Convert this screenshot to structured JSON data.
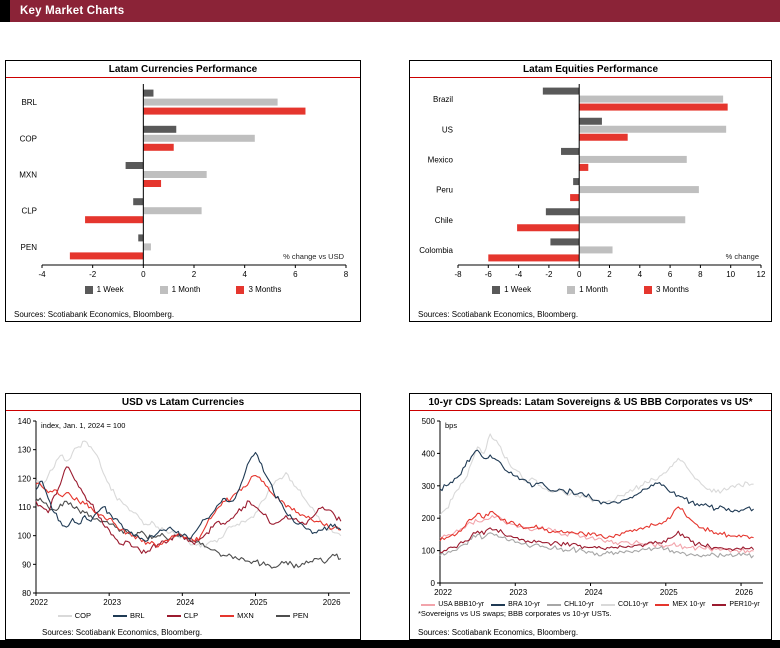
{
  "header": {
    "title": "Key Market Charts"
  },
  "colors": {
    "header_bg": "#8b2337",
    "accent_red": "#cc0000",
    "week1_gray": "#595959",
    "month1_gray": "#bfbfbf",
    "months3_red": "#e5362e",
    "navy": "#1f3a54",
    "dark_red": "#9b1b2f",
    "light_gray": "#d9d9d9",
    "mid_gray": "#a6a6a6",
    "pink": "#f2a4ab"
  },
  "chart_data": [
    {
      "id": "latam-currencies-performance",
      "type": "bar",
      "orientation": "horizontal",
      "title": "Latam Currencies Performance",
      "unit_label": "% change  vs USD",
      "sources": "Sources:  Scotiabank  Economics,  Bloomberg.",
      "xlim": [
        -4,
        8
      ],
      "xticks": [
        -4,
        -2,
        0,
        2,
        4,
        6,
        8
      ],
      "categories": [
        "BRL",
        "COP",
        "MXN",
        "CLP",
        "PEN"
      ],
      "series": [
        {
          "name": "1 Week",
          "color": "#595959",
          "values": [
            0.4,
            1.3,
            -0.7,
            -0.4,
            -0.2
          ]
        },
        {
          "name": "1 Month",
          "color": "#bfbfbf",
          "values": [
            5.3,
            4.4,
            2.5,
            2.3,
            0.3
          ]
        },
        {
          "name": "3 Months",
          "color": "#e5362e",
          "values": [
            6.4,
            1.2,
            0.7,
            -2.3,
            -2.9
          ]
        }
      ]
    },
    {
      "id": "latam-equities-performance",
      "type": "bar",
      "orientation": "horizontal",
      "title": "Latam Equities Performance",
      "unit_label": "% change",
      "sources": "Sources:  Scotiabank  Economics,  Bloomberg.",
      "xlim": [
        -8,
        12
      ],
      "xticks": [
        -8,
        -6,
        -4,
        -2,
        0,
        2,
        4,
        6,
        8,
        10,
        12
      ],
      "categories": [
        "Brazil",
        "US",
        "Mexico",
        "Peru",
        "Chile",
        "Colombia"
      ],
      "series": [
        {
          "name": "1 Week",
          "color": "#595959",
          "values": [
            -2.4,
            1.5,
            -1.2,
            -0.4,
            -2.2,
            -1.9
          ]
        },
        {
          "name": "1 Month",
          "color": "#bfbfbf",
          "values": [
            9.5,
            9.7,
            7.1,
            7.9,
            7.0,
            2.2
          ]
        },
        {
          "name": "3 Months",
          "color": "#e5362e",
          "values": [
            9.8,
            3.2,
            0.6,
            -0.6,
            -4.1,
            -6.0
          ]
        }
      ]
    },
    {
      "id": "usd-vs-latam-currencies",
      "type": "line",
      "title": "USD vs Latam Currencies",
      "axis_note": "index,  Jan. 1, 2024 = 100",
      "sources": "Sources:  Scotiabank  Economics,  Bloomberg.",
      "ylim": [
        80,
        140
      ],
      "yticks": [
        80,
        90,
        100,
        110,
        120,
        130,
        140
      ],
      "x_start_year": 2022,
      "points_per_year": 12,
      "xtick_years": [
        2022,
        2023,
        2024,
        2025,
        2026
      ],
      "series": [
        {
          "name": "COP",
          "color": "#d9d9d9",
          "z": 0,
          "values": [
            119,
            117,
            121,
            124,
            128,
            126,
            129,
            131,
            133,
            131,
            128,
            122,
            118,
            114,
            112,
            110,
            108,
            106,
            104,
            105,
            103,
            102,
            101,
            100,
            100,
            98,
            97,
            96,
            97,
            98,
            99,
            101,
            103,
            104,
            105,
            106,
            108,
            112,
            115,
            118,
            120,
            122,
            119,
            116,
            113,
            110,
            107,
            104,
            102,
            101,
            100
          ]
        },
        {
          "name": "BRL",
          "color": "#1f3a54",
          "z": 4,
          "values": [
            116,
            119,
            113,
            108,
            105,
            103,
            106,
            104,
            107,
            105,
            108,
            110,
            108,
            106,
            104,
            102,
            100,
            99,
            98,
            100,
            101,
            102,
            103,
            101,
            100,
            99,
            101,
            104,
            106,
            108,
            111,
            113,
            112,
            115,
            120,
            126,
            129,
            125,
            120,
            115,
            112,
            108,
            106,
            104,
            103,
            102,
            101,
            102,
            103,
            104,
            102
          ]
        },
        {
          "name": "CLP",
          "color": "#9b1b2f",
          "z": 2,
          "values": [
            112,
            110,
            108,
            114,
            118,
            124,
            121,
            117,
            114,
            111,
            108,
            104,
            102,
            99,
            97,
            98,
            96,
            95,
            94,
            96,
            97,
            98,
            99,
            100,
            100,
            98,
            97,
            99,
            101,
            103,
            105,
            104,
            106,
            108,
            110,
            112,
            110,
            108,
            106,
            104,
            105,
            107,
            106,
            105,
            104,
            106,
            108,
            110,
            109,
            107,
            105
          ]
        },
        {
          "name": "MXN",
          "color": "#e5362e",
          "z": 3,
          "values": [
            118,
            117,
            115,
            116,
            114,
            115,
            113,
            112,
            111,
            110,
            108,
            107,
            106,
            104,
            102,
            101,
            100,
            99,
            97,
            98,
            96,
            98,
            99,
            100,
            100,
            99,
            98,
            100,
            104,
            107,
            110,
            112,
            113,
            115,
            117,
            119,
            121,
            119,
            117,
            114,
            112,
            110,
            109,
            108,
            107,
            106,
            105,
            104,
            103,
            103,
            102
          ]
        },
        {
          "name": "PEN",
          "color": "#4d4d4d",
          "z": 1,
          "values": [
            113,
            112,
            110,
            109,
            111,
            112,
            110,
            109,
            108,
            107,
            106,
            105,
            104,
            103,
            102,
            101,
            100,
            101,
            100,
            99,
            100,
            100,
            99,
            100,
            100,
            99,
            98,
            97,
            96,
            95,
            94,
            93,
            93,
            92,
            92,
            91,
            91,
            90,
            90,
            89,
            90,
            91,
            90,
            89,
            90,
            91,
            92,
            91,
            92,
            93,
            92
          ]
        }
      ]
    },
    {
      "id": "cds-spreads-latam-sovereigns",
      "type": "line",
      "title": "10-yr CDS Spreads: Latam Sovereigns & US BBB Corporates vs US*",
      "axis_note": "bps",
      "footnote": "*Sovereigns vs US swaps;  BBB corporates  vs 10-yr USTs.",
      "sources": "Sources:  Scotiabank  Economics,  Bloomberg.",
      "ylim": [
        0,
        500
      ],
      "yticks": [
        0,
        100,
        200,
        300,
        400,
        500
      ],
      "x_start_year": 2022,
      "points_per_year": 12,
      "xtick_years": [
        2022,
        2023,
        2024,
        2025,
        2026
      ],
      "series": [
        {
          "name": "USA BBB10-yr",
          "color": "#f2a4ab",
          "z": 2,
          "values": [
            140,
            145,
            150,
            160,
            170,
            185,
            190,
            195,
            200,
            205,
            195,
            185,
            180,
            175,
            170,
            165,
            170,
            165,
            160,
            155,
            150,
            155,
            150,
            145,
            140,
            135,
            130,
            128,
            125,
            128,
            126,
            124,
            122,
            120,
            118,
            116,
            115,
            118,
            114,
            112,
            110,
            108,
            106,
            105,
            104,
            103,
            102,
            101,
            100,
            100,
            99
          ]
        },
        {
          "name": "BRA 10-yr",
          "color": "#1f3a54",
          "z": 5,
          "values": [
            290,
            300,
            310,
            330,
            360,
            390,
            410,
            385,
            395,
            380,
            360,
            340,
            330,
            320,
            310,
            300,
            310,
            295,
            285,
            290,
            280,
            285,
            275,
            270,
            265,
            255,
            250,
            245,
            250,
            255,
            260,
            270,
            280,
            290,
            300,
            310,
            295,
            280,
            270,
            260,
            250,
            245,
            240,
            235,
            230,
            235,
            230,
            225,
            225,
            232,
            228
          ]
        },
        {
          "name": "CHL10-yr",
          "color": "#a6a6a6",
          "z": 1,
          "values": [
            85,
            90,
            100,
            110,
            120,
            135,
            150,
            140,
            155,
            150,
            140,
            130,
            125,
            120,
            115,
            118,
            112,
            110,
            108,
            105,
            102,
            105,
            100,
            98,
            95,
            92,
            90,
            92,
            94,
            96,
            98,
            100,
            102,
            104,
            106,
            108,
            105,
            100,
            96,
            92,
            90,
            88,
            86,
            85,
            84,
            85,
            86,
            84,
            85,
            86,
            85
          ]
        },
        {
          "name": "COL10-yr",
          "color": "#d9d9d9",
          "z": 0,
          "values": [
            210,
            230,
            260,
            290,
            320,
            370,
            420,
            400,
            460,
            440,
            400,
            370,
            350,
            330,
            310,
            320,
            300,
            290,
            280,
            285,
            275,
            280,
            270,
            265,
            260,
            255,
            250,
            255,
            260,
            270,
            280,
            290,
            300,
            310,
            320,
            330,
            340,
            360,
            385,
            370,
            340,
            320,
            300,
            290,
            280,
            285,
            290,
            295,
            300,
            310,
            305
          ]
        },
        {
          "name": "MEX 10-yr",
          "color": "#e5362e",
          "z": 4,
          "values": [
            130,
            140,
            150,
            160,
            175,
            195,
            215,
            200,
            220,
            210,
            195,
            185,
            180,
            175,
            170,
            172,
            168,
            165,
            160,
            158,
            155,
            158,
            152,
            150,
            148,
            145,
            142,
            145,
            150,
            155,
            160,
            165,
            170,
            175,
            180,
            185,
            190,
            210,
            235,
            215,
            195,
            180,
            170,
            160,
            155,
            150,
            148,
            145,
            142,
            145,
            140
          ]
        },
        {
          "name": "PER10-yr",
          "color": "#9b1b2f",
          "z": 3,
          "values": [
            95,
            100,
            110,
            120,
            130,
            145,
            160,
            150,
            170,
            165,
            155,
            145,
            140,
            135,
            130,
            132,
            128,
            125,
            122,
            120,
            118,
            120,
            115,
            112,
            110,
            108,
            106,
            108,
            110,
            112,
            114,
            116,
            118,
            120,
            122,
            124,
            126,
            140,
            160,
            140,
            128,
            120,
            115,
            112,
            110,
            108,
            106,
            105,
            104,
            106,
            103
          ]
        }
      ]
    }
  ]
}
